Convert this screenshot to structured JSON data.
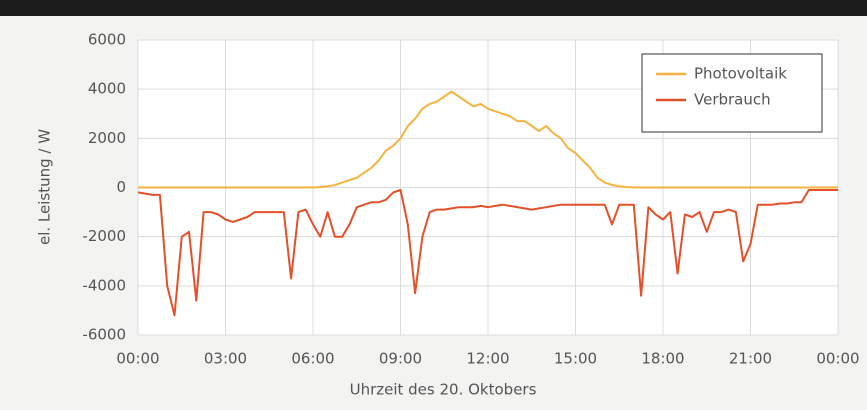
{
  "chart_data": {
    "type": "line",
    "xlabel": "Uhrzeit des 20. Oktobers",
    "ylabel": "el. Leistung / W",
    "x": [
      0,
      0.25,
      0.5,
      0.75,
      1,
      1.25,
      1.5,
      1.75,
      2,
      2.25,
      2.5,
      2.75,
      3,
      3.25,
      3.5,
      3.75,
      4,
      4.25,
      4.5,
      4.75,
      5,
      5.25,
      5.5,
      5.75,
      6,
      6.25,
      6.5,
      6.75,
      7,
      7.25,
      7.5,
      7.75,
      8,
      8.25,
      8.5,
      8.75,
      9,
      9.25,
      9.5,
      9.75,
      10,
      10.25,
      10.5,
      10.75,
      11,
      11.25,
      11.5,
      11.75,
      12,
      12.25,
      12.5,
      12.75,
      13,
      13.25,
      13.5,
      13.75,
      14,
      14.25,
      14.5,
      14.75,
      15,
      15.25,
      15.5,
      15.75,
      16,
      16.25,
      16.5,
      16.75,
      17,
      17.25,
      17.5,
      17.75,
      18,
      18.25,
      18.5,
      18.75,
      19,
      19.25,
      19.5,
      19.75,
      20,
      20.25,
      20.5,
      20.75,
      21,
      21.25,
      21.5,
      21.75,
      22,
      22.25,
      22.5,
      22.75,
      23,
      23.25,
      23.5,
      23.75,
      24
    ],
    "series": [
      {
        "name": "Photovoltaik",
        "color": "#f5b340",
        "values": [
          0,
          0,
          0,
          0,
          0,
          0,
          0,
          0,
          0,
          0,
          0,
          0,
          0,
          0,
          0,
          0,
          0,
          0,
          0,
          0,
          0,
          0,
          0,
          0,
          0,
          20,
          50,
          100,
          200,
          300,
          400,
          600,
          800,
          1100,
          1500,
          1700,
          2000,
          2500,
          2800,
          3200,
          3400,
          3500,
          3700,
          3900,
          3700,
          3500,
          3300,
          3400,
          3200,
          3100,
          3000,
          2900,
          2700,
          2700,
          2500,
          2300,
          2500,
          2200,
          2000,
          1600,
          1400,
          1100,
          800,
          400,
          200,
          100,
          50,
          20,
          0,
          0,
          0,
          0,
          0,
          0,
          0,
          0,
          0,
          0,
          0,
          0,
          0,
          0,
          0,
          0,
          0,
          0,
          0,
          0,
          0,
          0,
          0,
          0,
          0,
          0,
          0,
          0,
          0
        ]
      },
      {
        "name": "Verbrauch",
        "color": "#e4502a",
        "values": [
          -200,
          -250,
          -300,
          -300,
          -4000,
          -5200,
          -2000,
          -1800,
          -4600,
          -1000,
          -1000,
          -1100,
          -1300,
          -1400,
          -1300,
          -1200,
          -1000,
          -1000,
          -1000,
          -1000,
          -1000,
          -3700,
          -1000,
          -900,
          -1500,
          -2000,
          -1000,
          -2000,
          -2000,
          -1500,
          -800,
          -700,
          -600,
          -600,
          -500,
          -200,
          -100,
          -1500,
          -4300,
          -2000,
          -1000,
          -900,
          -900,
          -850,
          -800,
          -800,
          -800,
          -750,
          -800,
          -750,
          -700,
          -750,
          -800,
          -850,
          -900,
          -850,
          -800,
          -750,
          -700,
          -700,
          -700,
          -700,
          -700,
          -700,
          -700,
          -1500,
          -700,
          -700,
          -700,
          -4400,
          -800,
          -1100,
          -1300,
          -1000,
          -3500,
          -1100,
          -1200,
          -1000,
          -1800,
          -1000,
          -1000,
          -900,
          -1000,
          -3000,
          -2300,
          -700,
          -700,
          -700,
          -650,
          -650,
          -600,
          -600,
          -100,
          -100,
          -100,
          -100,
          -100
        ]
      }
    ],
    "xlim": [
      0,
      24
    ],
    "xticks": [
      {
        "value": 0,
        "label": "00:00"
      },
      {
        "value": 3,
        "label": "03:00"
      },
      {
        "value": 6,
        "label": "06:00"
      },
      {
        "value": 9,
        "label": "09:00"
      },
      {
        "value": 12,
        "label": "12:00"
      },
      {
        "value": 15,
        "label": "15:00"
      },
      {
        "value": 18,
        "label": "18:00"
      },
      {
        "value": 21,
        "label": "21:00"
      },
      {
        "value": 24,
        "label": "00:00"
      }
    ],
    "ylim": [
      -6000,
      6000
    ],
    "yticks": [
      6000,
      4000,
      2000,
      0,
      -2000,
      -4000,
      -6000
    ],
    "grid": true,
    "legend": "upper right"
  }
}
